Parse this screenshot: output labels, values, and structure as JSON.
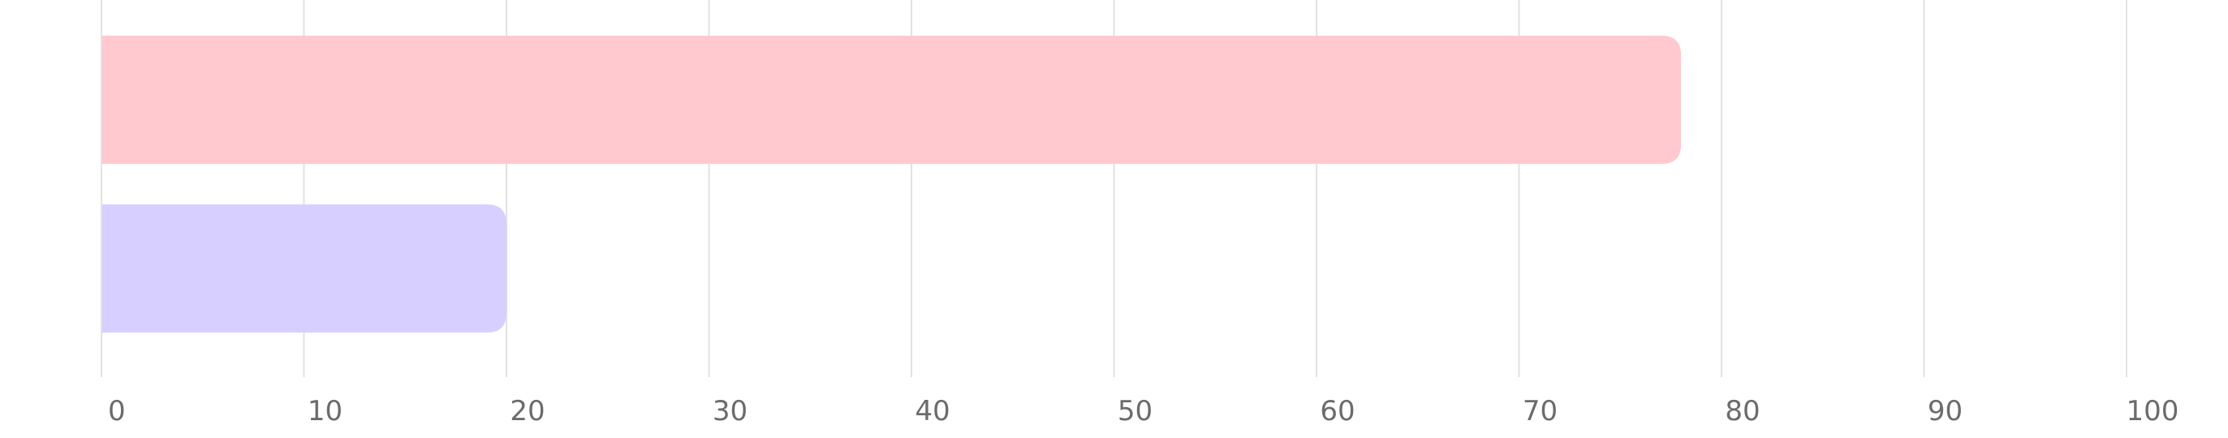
{
  "chart_data": {
    "type": "bar",
    "orientation": "horizontal",
    "categories": [
      "",
      ""
    ],
    "values": [
      78,
      20
    ],
    "colors": [
      "#FFC9CF",
      "#D7CFFF"
    ],
    "title": "",
    "xlabel": "",
    "ylabel": "",
    "xlim": [
      0,
      100
    ],
    "xticks": [
      "0",
      "10",
      "20",
      "30",
      "40",
      "50",
      "60",
      "70",
      "80",
      "90",
      "100"
    ],
    "grid": true,
    "legend": "none"
  },
  "style": {
    "grid_color": "#E2E2E2",
    "tick_color": "#6B6B6B"
  }
}
